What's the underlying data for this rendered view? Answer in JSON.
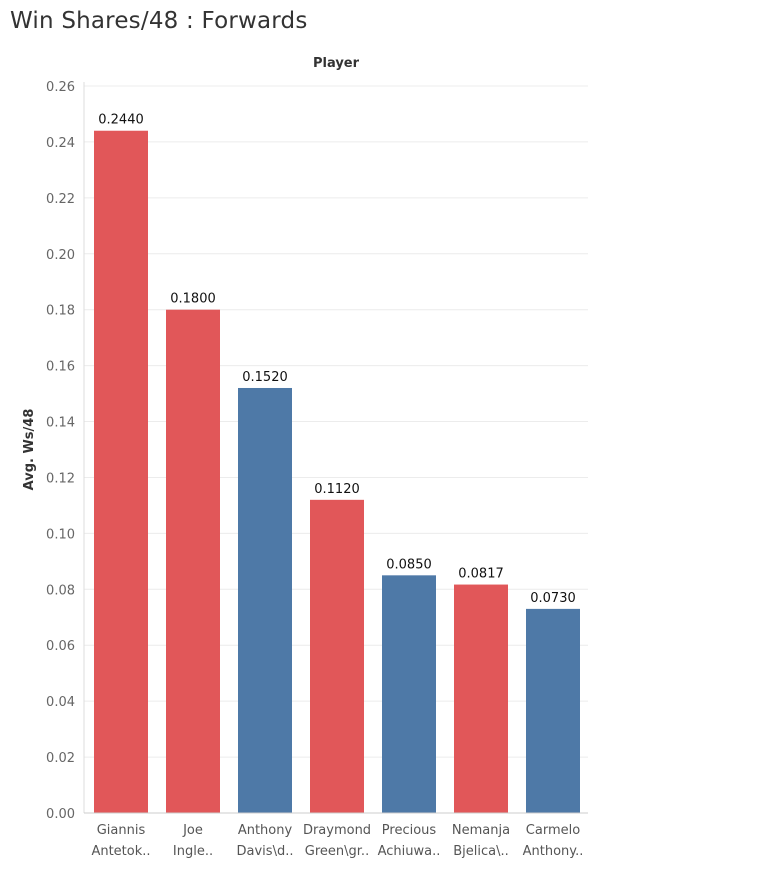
{
  "title": "Win Shares/48 : Forwards",
  "chart_data": {
    "type": "bar",
    "column_header": "Player",
    "ylabel": "Avg. Ws/48",
    "ylim": [
      0,
      0.26
    ],
    "yticks": [
      "0.00",
      "0.02",
      "0.04",
      "0.06",
      "0.08",
      "0.10",
      "0.12",
      "0.14",
      "0.16",
      "0.18",
      "0.20",
      "0.22",
      "0.24",
      "0.26"
    ],
    "ytick_values": [
      0,
      0.02,
      0.04,
      0.06,
      0.08,
      0.1,
      0.12,
      0.14,
      0.16,
      0.18,
      0.2,
      0.22,
      0.24,
      0.26
    ],
    "grid": true,
    "categories": [
      [
        "Giannis",
        "Antetok.."
      ],
      [
        "Joe",
        "Ingle.."
      ],
      [
        "Anthony",
        "Davis\\d.."
      ],
      [
        "Draymond",
        "Green\\gr.."
      ],
      [
        "Precious",
        "Achiuwa.."
      ],
      [
        "Nemanja",
        "Bjelica\\.."
      ],
      [
        "Carmelo",
        "Anthony.."
      ]
    ],
    "values": [
      0.244,
      0.18,
      0.152,
      0.112,
      0.085,
      0.0817,
      0.073
    ],
    "value_labels": [
      "0.2440",
      "0.1800",
      "0.1520",
      "0.1120",
      "0.0850",
      "0.0817",
      "0.0730"
    ],
    "colors": [
      "#e15759",
      "#e15759",
      "#4e79a7",
      "#e15759",
      "#4e79a7",
      "#e15759",
      "#4e79a7"
    ]
  }
}
